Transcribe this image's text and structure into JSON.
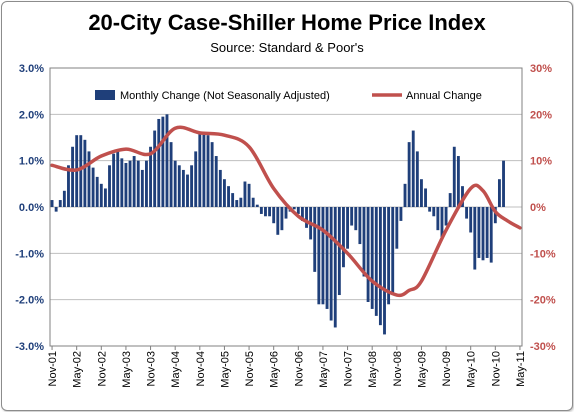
{
  "chart_data": {
    "type": "bar+line",
    "title": "20-City Case-Shiller Home Price Index",
    "subtitle": "Source: Standard & Poor's",
    "x_tick_labels": [
      "Nov-01",
      "May-02",
      "Nov-02",
      "May-03",
      "Nov-03",
      "May-04",
      "Nov-04",
      "May-05",
      "Nov-05",
      "May-06",
      "Nov-06",
      "May-07",
      "Nov-07",
      "May-08",
      "Nov-08",
      "May-09",
      "Nov-09",
      "May-10",
      "Nov-10",
      "May-11"
    ],
    "x_range": [
      "Nov-01",
      "May-11"
    ],
    "left_axis": {
      "ylim": [
        -3.0,
        3.0
      ],
      "ticks": [
        "3.0%",
        "2.0%",
        "1.0%",
        "0.0%",
        "-1.0%",
        "-2.0%",
        "-3.0%"
      ],
      "color": "#1f3f7a"
    },
    "right_axis": {
      "ylim": [
        -30,
        30
      ],
      "ticks": [
        "30%",
        "20%",
        "10%",
        "0%",
        "-10%",
        "-20%",
        "-30%"
      ],
      "color": "#c0504d"
    },
    "series": [
      {
        "name": "Monthly Change (Not Seasonally Adjusted)",
        "kind": "bar",
        "axis": "left",
        "color": "#1f3f7a",
        "values": [
          0.15,
          -0.1,
          0.15,
          0.35,
          0.9,
          1.3,
          1.55,
          1.55,
          1.45,
          1.2,
          0.85,
          0.65,
          0.5,
          0.4,
          0.9,
          1.15,
          1.2,
          1.05,
          0.95,
          1.0,
          1.1,
          1.0,
          0.8,
          1.0,
          1.3,
          1.65,
          1.9,
          1.95,
          2.0,
          1.4,
          1.0,
          0.9,
          0.8,
          0.7,
          0.9,
          1.2,
          1.6,
          1.6,
          1.55,
          1.4,
          1.1,
          0.8,
          0.6,
          0.45,
          0.3,
          0.15,
          0.2,
          0.55,
          0.5,
          0.2,
          0.05,
          -0.15,
          -0.2,
          -0.2,
          -0.35,
          -0.6,
          -0.5,
          -0.25,
          -0.1,
          -0.05,
          -0.15,
          -0.3,
          -0.45,
          -0.7,
          -1.4,
          -2.1,
          -2.1,
          -2.2,
          -2.45,
          -2.6,
          -1.9,
          -1.3,
          -0.9,
          -0.4,
          -0.5,
          -0.8,
          -1.5,
          -2.05,
          -2.2,
          -2.35,
          -2.55,
          -2.75,
          -2.1,
          -1.9,
          -0.9,
          -0.3,
          0.5,
          1.4,
          1.65,
          1.2,
          0.6,
          0.4,
          -0.1,
          -0.2,
          -0.5,
          -0.65,
          -0.4,
          0.3,
          1.3,
          1.1,
          0.45,
          -0.25,
          -0.55,
          -1.35,
          -1.1,
          -1.15,
          -1.1,
          -1.2,
          -0.35,
          0.6,
          1.0
        ],
        "first_month": "Nov-01"
      },
      {
        "name": "Annual Change",
        "kind": "line",
        "axis": "right",
        "color": "#c0504d",
        "points": [
          [
            "Nov-01",
            9
          ],
          [
            "May-02",
            8
          ],
          [
            "Nov-02",
            11
          ],
          [
            "May-03",
            12.5
          ],
          [
            "Nov-03",
            11.5
          ],
          [
            "May-04",
            17
          ],
          [
            "Nov-04",
            16
          ],
          [
            "May-05",
            15.5
          ],
          [
            "Nov-05",
            13
          ],
          [
            "May-06",
            4
          ],
          [
            "Nov-06",
            -2
          ],
          [
            "May-07",
            -5
          ],
          [
            "Nov-07",
            -10
          ],
          [
            "May-08",
            -16
          ],
          [
            "Nov-08",
            -19
          ],
          [
            "Feb-09",
            -18
          ],
          [
            "May-09",
            -16
          ],
          [
            "Nov-09",
            -5
          ],
          [
            "May-10",
            4
          ],
          [
            "Aug-10",
            3.5
          ],
          [
            "Nov-10",
            -1
          ],
          [
            "Feb-11",
            -3
          ],
          [
            "May-11",
            -4.5
          ]
        ]
      }
    ],
    "grid": true,
    "legend_position": "top-center"
  }
}
